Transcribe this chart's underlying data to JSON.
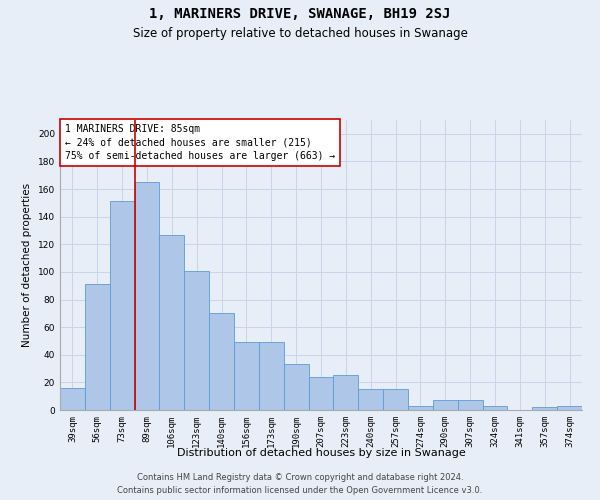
{
  "title": "1, MARINERS DRIVE, SWANAGE, BH19 2SJ",
  "subtitle": "Size of property relative to detached houses in Swanage",
  "xlabel": "Distribution of detached houses by size in Swanage",
  "ylabel": "Number of detached properties",
  "categories": [
    "39sqm",
    "56sqm",
    "73sqm",
    "89sqm",
    "106sqm",
    "123sqm",
    "140sqm",
    "156sqm",
    "173sqm",
    "190sqm",
    "207sqm",
    "223sqm",
    "240sqm",
    "257sqm",
    "274sqm",
    "290sqm",
    "307sqm",
    "324sqm",
    "341sqm",
    "357sqm",
    "374sqm"
  ],
  "values": [
    16,
    91,
    151,
    165,
    127,
    101,
    70,
    49,
    49,
    33,
    24,
    25,
    15,
    15,
    3,
    7,
    7,
    3,
    0,
    2,
    3
  ],
  "bar_color": "#aec6e8",
  "bar_edge_color": "#5b9bd5",
  "background_color": "#e8eef8",
  "grid_color": "#c8d4e8",
  "vline_x_index": 3,
  "vline_color": "#cc0000",
  "annotation_text": "1 MARINERS DRIVE: 85sqm\n← 24% of detached houses are smaller (215)\n75% of semi-detached houses are larger (663) →",
  "annotation_box_color": "#ffffff",
  "annotation_box_edge": "#cc0000",
  "ylim": [
    0,
    210
  ],
  "yticks": [
    0,
    20,
    40,
    60,
    80,
    100,
    120,
    140,
    160,
    180,
    200
  ],
  "footer_line1": "Contains HM Land Registry data © Crown copyright and database right 2024.",
  "footer_line2": "Contains public sector information licensed under the Open Government Licence v3.0.",
  "title_fontsize": 10,
  "subtitle_fontsize": 8.5,
  "xlabel_fontsize": 8,
  "ylabel_fontsize": 7.5,
  "tick_fontsize": 6.5,
  "annotation_fontsize": 7,
  "footer_fontsize": 6
}
